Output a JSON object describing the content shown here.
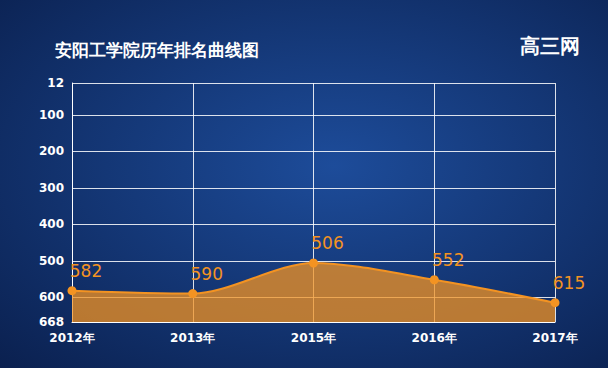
{
  "chart_data": {
    "type": "line",
    "title": "安阳工学院历年排名曲线图",
    "annotations": [
      "高三网"
    ],
    "categories": [
      "2012年",
      "2013年",
      "2015年",
      "2016年",
      "2017年"
    ],
    "values": [
      582,
      590,
      506,
      552,
      615
    ],
    "color": "#f39322",
    "ylim": [
      12,
      668
    ],
    "yticks": [
      12,
      100,
      200,
      300,
      400,
      500,
      600,
      668
    ],
    "grid": true,
    "data_labels": true,
    "marker": "circle"
  }
}
